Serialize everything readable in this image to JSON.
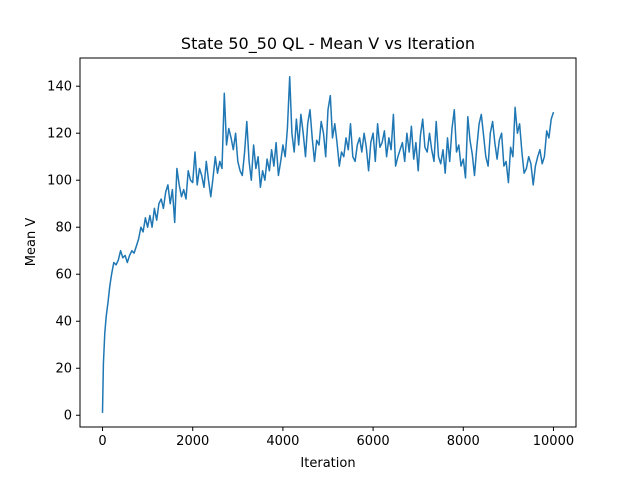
{
  "chart_data": {
    "type": "line",
    "title": "State 50_50 QL - Mean V vs Iteration",
    "xlabel": "Iteration",
    "ylabel": "Mean V",
    "xlim": [
      -500,
      10500
    ],
    "ylim": [
      -5,
      152
    ],
    "xticks": [
      0,
      2000,
      4000,
      6000,
      8000,
      10000
    ],
    "yticks": [
      0,
      20,
      40,
      60,
      80,
      100,
      120,
      140
    ],
    "grid": false,
    "legend": "none",
    "series_color": "#1f77b4",
    "series": [
      {
        "x": [
          0,
          20,
          50,
          80,
          120,
          160,
          200,
          250,
          300,
          350,
          400,
          450,
          500,
          550,
          600,
          650,
          700,
          750,
          800,
          850,
          900,
          950,
          1000,
          1050,
          1100,
          1150,
          1200,
          1250,
          1300,
          1350,
          1400,
          1450,
          1500,
          1550,
          1600,
          1650,
          1700,
          1750,
          1800,
          1850,
          1900,
          1950,
          2000,
          2050,
          2100,
          2150,
          2200,
          2250,
          2300,
          2350,
          2400,
          2450,
          2500,
          2550,
          2600,
          2650,
          2700,
          2750,
          2800,
          2850,
          2900,
          2950,
          3000,
          3050,
          3100,
          3150,
          3200,
          3250,
          3300,
          3350,
          3400,
          3450,
          3500,
          3550,
          3600,
          3650,
          3700,
          3750,
          3800,
          3850,
          3900,
          3950,
          4000,
          4050,
          4100,
          4150,
          4200,
          4250,
          4300,
          4350,
          4400,
          4450,
          4500,
          4550,
          4600,
          4650,
          4700,
          4750,
          4800,
          4850,
          4900,
          4950,
          5000,
          5050,
          5100,
          5150,
          5200,
          5250,
          5300,
          5350,
          5400,
          5450,
          5500,
          5550,
          5600,
          5650,
          5700,
          5750,
          5800,
          5850,
          5900,
          5950,
          6000,
          6050,
          6100,
          6150,
          6200,
          6250,
          6300,
          6350,
          6400,
          6450,
          6500,
          6550,
          6600,
          6650,
          6700,
          6750,
          6800,
          6850,
          6900,
          6950,
          7000,
          7050,
          7100,
          7150,
          7200,
          7250,
          7300,
          7350,
          7400,
          7450,
          7500,
          7550,
          7600,
          7650,
          7700,
          7750,
          7800,
          7850,
          7900,
          7950,
          8000,
          8050,
          8100,
          8150,
          8200,
          8250,
          8300,
          8350,
          8400,
          8450,
          8500,
          8550,
          8600,
          8650,
          8700,
          8750,
          8800,
          8850,
          8900,
          8950,
          9000,
          9050,
          9100,
          9150,
          9200,
          9250,
          9300,
          9350,
          9400,
          9450,
          9500,
          9550,
          9600,
          9650,
          9700,
          9750,
          9800,
          9850,
          9900,
          9950,
          10000
        ],
        "y": [
          1,
          22,
          35,
          42,
          48,
          55,
          60,
          65,
          64,
          66,
          70,
          67,
          68,
          65,
          68,
          70,
          69,
          72,
          75,
          80,
          78,
          84,
          80,
          85,
          80,
          88,
          83,
          90,
          92,
          88,
          95,
          98,
          90,
          96,
          82,
          105,
          98,
          93,
          96,
          92,
          104,
          100,
          99,
          112,
          98,
          105,
          102,
          97,
          108,
          100,
          93,
          101,
          110,
          103,
          108,
          105,
          137,
          115,
          122,
          118,
          113,
          120,
          108,
          104,
          102,
          112,
          125,
          108,
          100,
          115,
          105,
          110,
          97,
          104,
          100,
          109,
          104,
          113,
          106,
          116,
          102,
          108,
          115,
          110,
          122,
          144,
          120,
          112,
          126,
          115,
          128,
          120,
          110,
          124,
          130,
          118,
          108,
          117,
          115,
          125,
          120,
          110,
          130,
          136,
          118,
          124,
          116,
          106,
          112,
          110,
          118,
          113,
          124,
          110,
          108,
          115,
          118,
          112,
          120,
          114,
          104,
          116,
          120,
          108,
          124,
          114,
          116,
          121,
          110,
          118,
          113,
          128,
          106,
          110,
          113,
          116,
          108,
          120,
          112,
          123,
          109,
          116,
          104,
          119,
          126,
          114,
          112,
          120,
          113,
          108,
          125,
          110,
          107,
          113,
          103,
          118,
          108,
          122,
          130,
          112,
          115,
          106,
          109,
          101,
          127,
          117,
          111,
          102,
          114,
          124,
          128,
          119,
          110,
          106,
          120,
          125,
          116,
          109,
          117,
          120,
          106,
          108,
          99,
          114,
          110,
          131,
          120,
          124,
          112,
          103,
          105,
          110,
          107,
          98,
          106,
          110,
          113,
          107,
          110,
          121,
          118,
          126,
          129
        ]
      }
    ]
  }
}
